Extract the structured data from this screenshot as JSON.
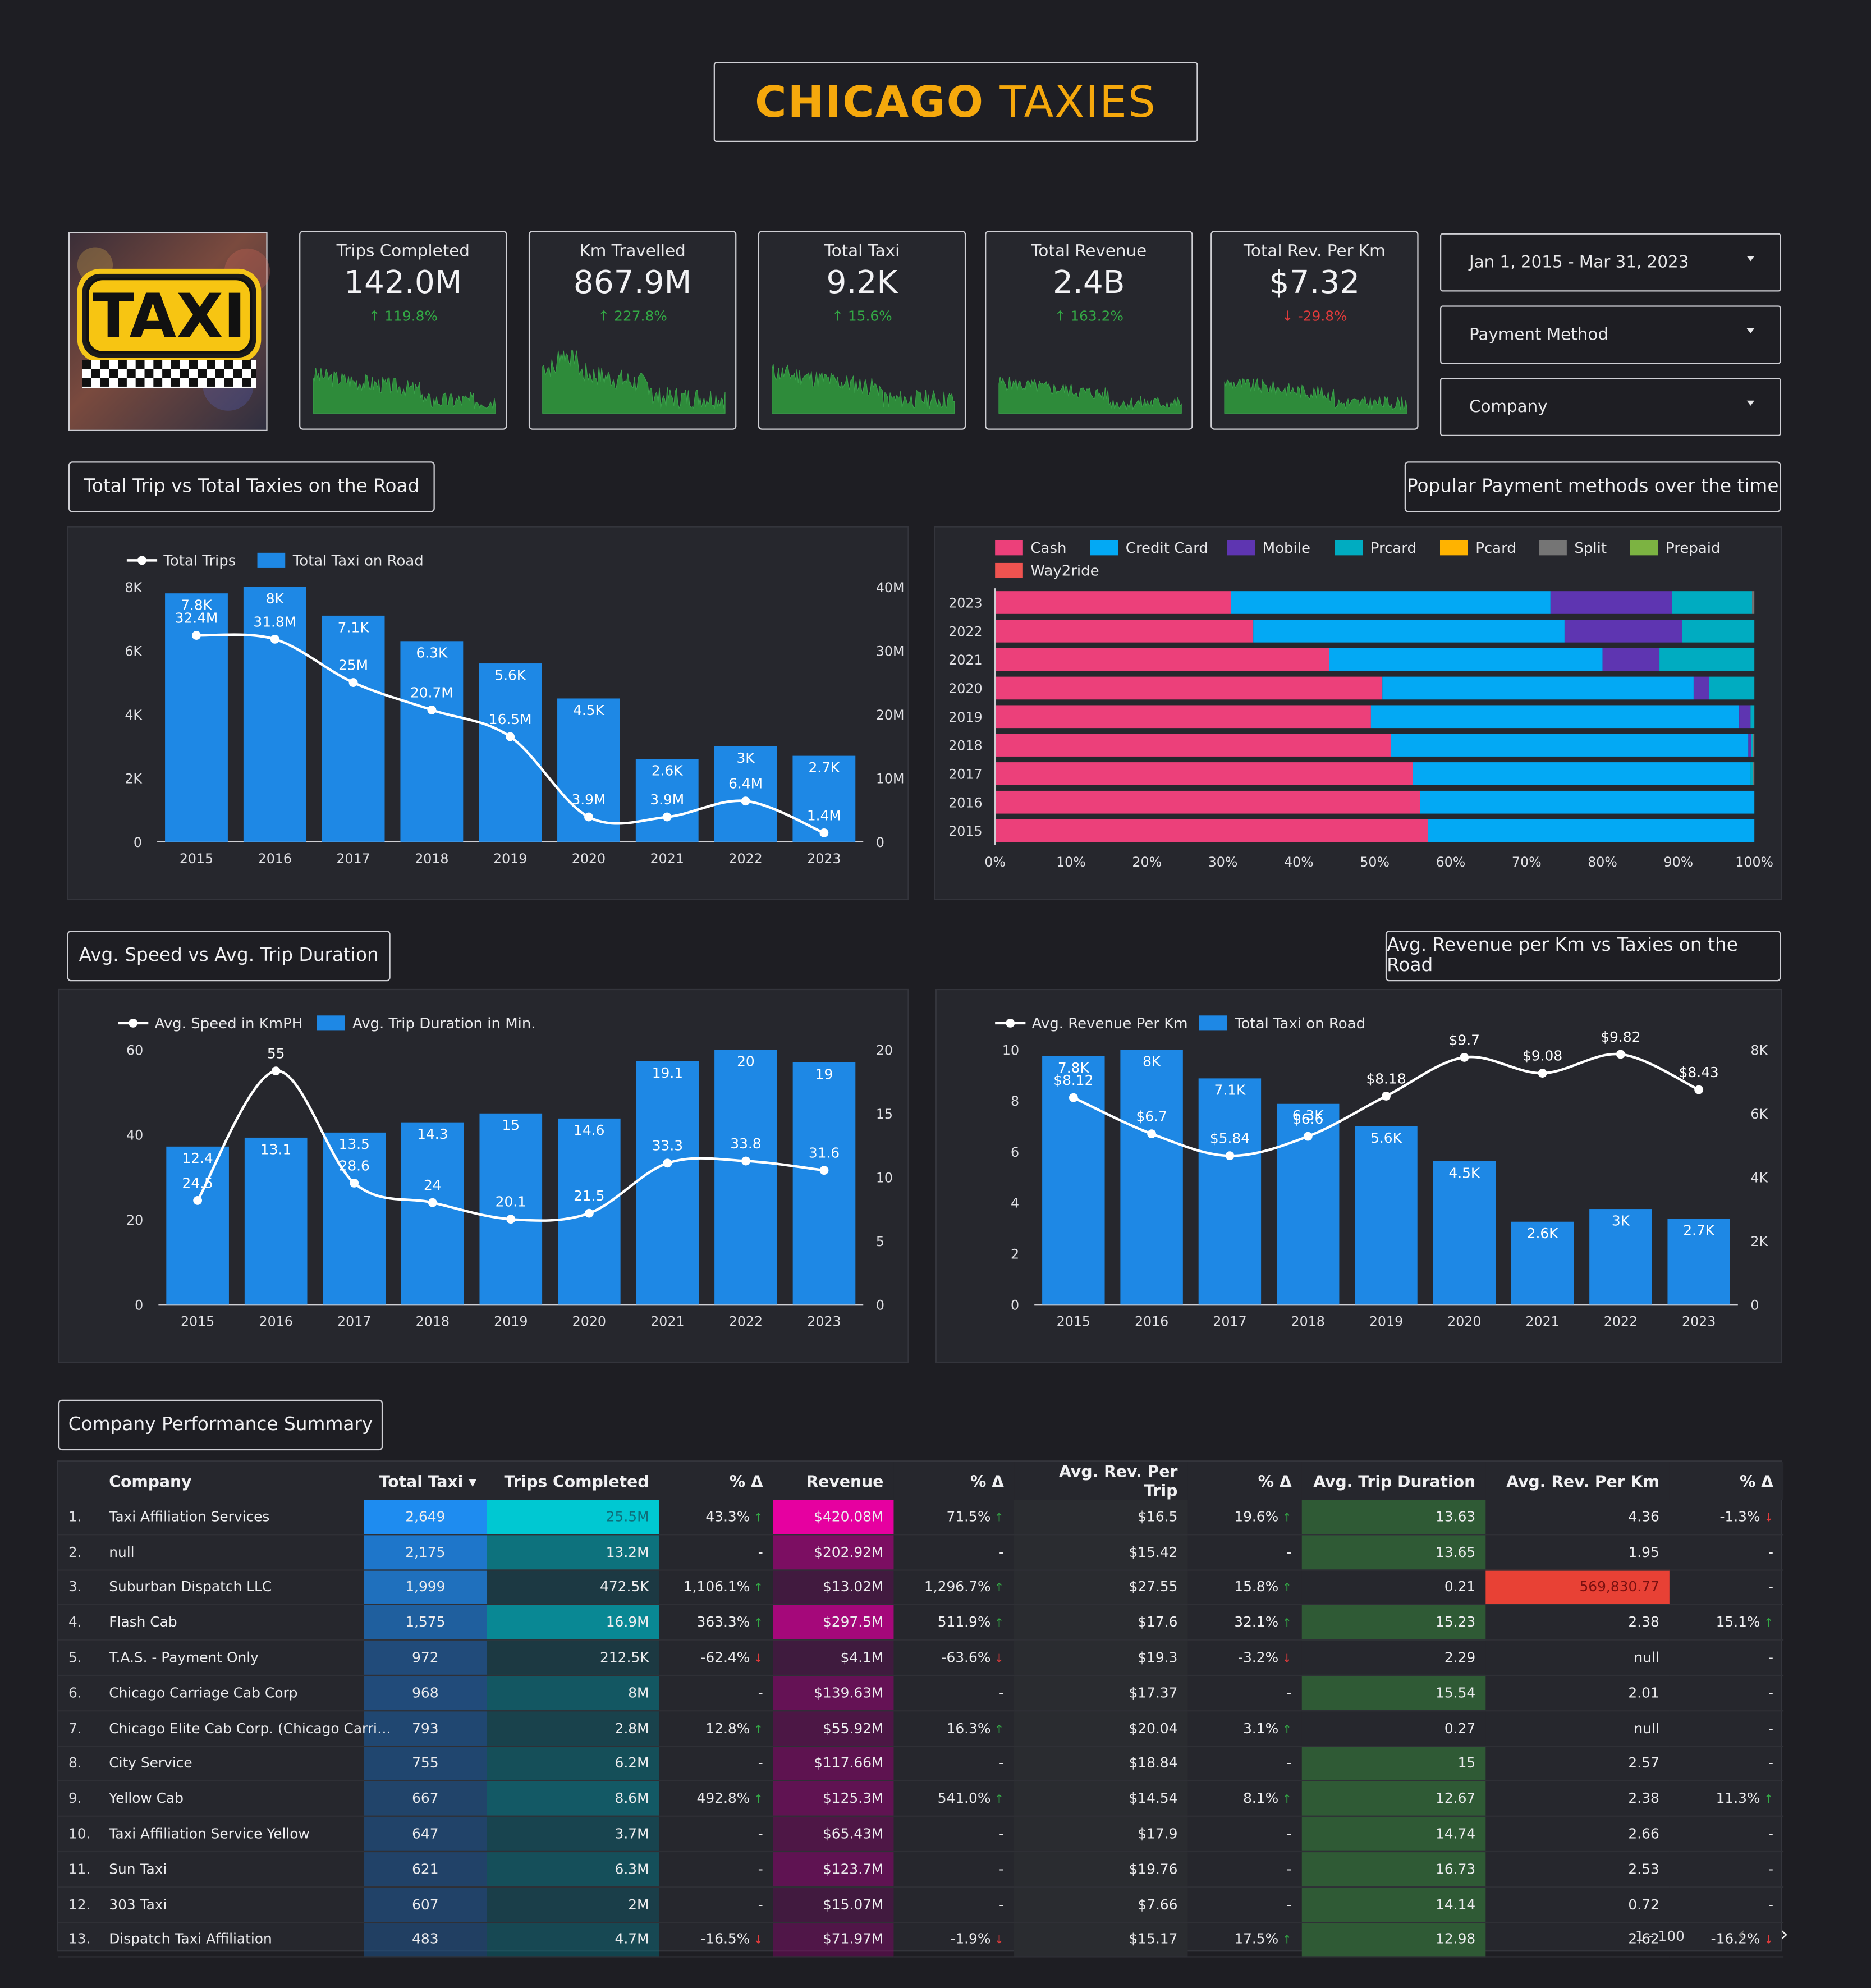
{
  "title": {
    "bold": "CHICAGO",
    "light": "TAXIES"
  },
  "logo": {
    "text": "TAXI"
  },
  "kpis": [
    {
      "label": "Trips Completed",
      "value": "142.0M",
      "change": "↑ 119.8%",
      "dir": "up"
    },
    {
      "label": "Km Travelled",
      "value": "867.9M",
      "change": "↑ 227.8%",
      "dir": "up"
    },
    {
      "label": "Total Taxi",
      "value": "9.2K",
      "change": "↑ 15.6%",
      "dir": "up"
    },
    {
      "label": "Total Revenue",
      "value": "2.4B",
      "change": "↑ 163.2%",
      "dir": "up"
    },
    {
      "label": "Total Rev. Per Km",
      "value": "$7.32",
      "change": "↓ -29.8%",
      "dir": "down"
    }
  ],
  "filters": {
    "date": "Jan 1, 2015 - Mar 31, 2023",
    "payment": "Payment Method",
    "company": "Company"
  },
  "sections": {
    "trips_taxi": "Total Trip vs Total Taxies on the Road",
    "payment": "Popular Payment methods over the time",
    "speed": "Avg. Speed vs Avg. Trip Duration",
    "revkm": "Avg. Revenue per Km vs Taxies on the Road",
    "company": "Company Performance Summary"
  },
  "chart_data": [
    {
      "type": "bar",
      "categories": [
        "2015",
        "2016",
        "2017",
        "2018",
        "2019",
        "2020",
        "2021",
        "2022",
        "2023"
      ],
      "series": [
        {
          "name": "Total Taxi on Road",
          "type": "bar",
          "axis": "left",
          "values": [
            7800,
            8000,
            7100,
            6300,
            5600,
            4500,
            2600,
            3000,
            2700
          ],
          "labels": [
            "7.8K",
            "8K",
            "7.1K",
            "6.3K",
            "5.6K",
            "4.5K",
            "2.6K",
            "3K",
            "2.7K"
          ],
          "color": "#1e88e5"
        },
        {
          "name": "Total Trips",
          "type": "line",
          "axis": "right",
          "values": [
            32.4,
            31.8,
            25,
            20.7,
            16.5,
            3.9,
            3.9,
            6.4,
            1.4
          ],
          "labels": [
            "32.4M",
            "31.8M",
            "25M",
            "20.7M",
            "16.5M",
            "3.9M",
            "3.9M",
            "6.4M",
            "1.4M"
          ],
          "color": "#ffffff"
        }
      ],
      "yleft": {
        "ticks": [
          "0",
          "2K",
          "4K",
          "6K",
          "8K"
        ],
        "max": 8000
      },
      "yright": {
        "ticks": [
          "0",
          "10M",
          "20M",
          "30M",
          "40M"
        ],
        "max": 40
      }
    },
    {
      "type": "bar",
      "orientation": "horizontal-stacked-100",
      "categories": [
        "2023",
        "2022",
        "2021",
        "2020",
        "2019",
        "2018",
        "2017",
        "2016",
        "2015"
      ],
      "series": [
        {
          "name": "Cash",
          "color": "#ec407a",
          "values": [
            31,
            34,
            44,
            51,
            49.5,
            52,
            55,
            56,
            57
          ]
        },
        {
          "name": "Credit Card",
          "color": "#03a9f4",
          "values": [
            42,
            41,
            36,
            41,
            48.5,
            47,
            44.5,
            44,
            43
          ]
        },
        {
          "name": "Mobile",
          "color": "#5e35b1",
          "values": [
            16,
            15.5,
            7.5,
            2,
            1.5,
            0.4,
            0,
            0,
            0
          ]
        },
        {
          "name": "Prcard",
          "color": "#00acc1",
          "values": [
            10.5,
            9.5,
            12.5,
            6,
            0.5,
            0.2,
            0.3,
            0,
            0
          ]
        },
        {
          "name": "Pcard",
          "color": "#ffb300",
          "values": [
            0,
            0,
            0,
            0,
            0,
            0,
            0,
            0,
            0
          ]
        },
        {
          "name": "Split",
          "color": "#757575",
          "values": [
            0.3,
            0,
            0,
            0,
            0,
            0.2,
            0.2,
            0,
            0
          ]
        },
        {
          "name": "Prepaid",
          "color": "#7cb342",
          "values": [
            0,
            0,
            0,
            0,
            0,
            0,
            0,
            0,
            0
          ]
        },
        {
          "name": "Way2ride",
          "color": "#ef5350",
          "values": [
            0,
            0,
            0,
            0,
            0,
            0,
            0,
            0,
            0
          ]
        }
      ],
      "xticks": [
        "0%",
        "10%",
        "20%",
        "30%",
        "40%",
        "50%",
        "60%",
        "70%",
        "80%",
        "90%",
        "100%"
      ]
    },
    {
      "type": "bar",
      "categories": [
        "2015",
        "2016",
        "2017",
        "2018",
        "2019",
        "2020",
        "2021",
        "2022",
        "2023"
      ],
      "series": [
        {
          "name": "Avg. Trip Duration in Min.",
          "type": "bar",
          "axis": "right",
          "values": [
            12.4,
            13.1,
            13.5,
            14.3,
            15,
            14.6,
            19.1,
            20,
            19
          ],
          "labels": [
            "12.4",
            "13.1",
            "13.5",
            "14.3",
            "15",
            "14.6",
            "19.1",
            "20",
            "19"
          ],
          "color": "#1e88e5"
        },
        {
          "name": "Avg. Speed in KmPH",
          "type": "line",
          "axis": "left",
          "values": [
            24.5,
            55,
            28.6,
            24,
            20.1,
            21.5,
            33.3,
            33.8,
            31.6
          ],
          "labels": [
            "24.5",
            "55",
            "28.6",
            "24",
            "20.1",
            "21.5",
            "33.3",
            "33.8",
            "31.6"
          ],
          "color": "#ffffff"
        }
      ],
      "yleft": {
        "ticks": [
          "0",
          "20",
          "40",
          "60"
        ],
        "max": 60
      },
      "yright": {
        "ticks": [
          "0",
          "5",
          "10",
          "15",
          "20"
        ],
        "max": 20
      }
    },
    {
      "type": "bar",
      "categories": [
        "2015",
        "2016",
        "2017",
        "2018",
        "2019",
        "2020",
        "2021",
        "2022",
        "2023"
      ],
      "series": [
        {
          "name": "Total Taxi on Road",
          "type": "bar",
          "axis": "right",
          "values": [
            7800,
            8000,
            7100,
            6300,
            5600,
            4500,
            2600,
            3000,
            2700
          ],
          "labels": [
            "7.8K",
            "8K",
            "7.1K",
            "6.3K",
            "5.6K",
            "4.5K",
            "2.6K",
            "3K",
            "2.7K"
          ],
          "color": "#1e88e5"
        },
        {
          "name": "Avg. Revenue Per Km",
          "type": "line",
          "axis": "left",
          "values": [
            8.12,
            6.7,
            5.84,
            6.6,
            8.18,
            9.7,
            9.08,
            9.82,
            8.43
          ],
          "labels": [
            "$8.12",
            "$6.7",
            "$5.84",
            "$6.6",
            "$8.18",
            "$9.7",
            "$9.08",
            "$9.82",
            "$8.43"
          ],
          "color": "#ffffff"
        }
      ],
      "yleft": {
        "ticks": [
          "0",
          "2",
          "4",
          "6",
          "8",
          "10"
        ],
        "max": 10
      },
      "yright": {
        "ticks": [
          "0",
          "2K",
          "4K",
          "6K",
          "8K"
        ],
        "max": 8000
      }
    }
  ],
  "table": {
    "headers": [
      "Company",
      "Total Taxi ▾",
      "Trips Completed",
      "% Δ",
      "Revenue",
      "% Δ",
      "Avg. Rev. Per Trip",
      "% Δ",
      "Avg. Trip Duration",
      "Avg. Rev. Per Km",
      "% Δ"
    ],
    "rows": [
      [
        "1.",
        "Taxi Affiliation Services",
        "2,649",
        "25.5M",
        "43.3%",
        "up",
        "$420.08M",
        "71.5%",
        "up",
        "$16.5",
        "19.6%",
        "up",
        "13.63",
        "4.36",
        "-1.3%",
        "dn"
      ],
      [
        "2.",
        "null",
        "2,175",
        "13.2M",
        "-",
        "",
        "$202.92M",
        "-",
        "",
        "$15.42",
        "-",
        "",
        "13.65",
        "1.95",
        "-",
        ""
      ],
      [
        "3.",
        "Suburban Dispatch LLC",
        "1,999",
        "472.5K",
        "1,106.1%",
        "up",
        "$13.02M",
        "1,296.7%",
        "up",
        "$27.55",
        "15.8%",
        "up",
        "0.21",
        "569,830.77",
        "-",
        ""
      ],
      [
        "4.",
        "Flash Cab",
        "1,575",
        "16.9M",
        "363.3%",
        "up",
        "$297.5M",
        "511.9%",
        "up",
        "$17.6",
        "32.1%",
        "up",
        "15.23",
        "2.38",
        "15.1%",
        "up"
      ],
      [
        "5.",
        "T.A.S. - Payment Only",
        "972",
        "212.5K",
        "-62.4%",
        "dn",
        "$4.1M",
        "-63.6%",
        "dn",
        "$19.3",
        "-3.2%",
        "dn",
        "2.29",
        "null",
        "-",
        ""
      ],
      [
        "6.",
        "Chicago Carriage Cab Corp",
        "968",
        "8M",
        "-",
        "",
        "$139.63M",
        "-",
        "",
        "$17.37",
        "-",
        "",
        "15.54",
        "2.01",
        "-",
        ""
      ],
      [
        "7.",
        "Chicago Elite Cab Corp. (Chicago Carri…",
        "793",
        "2.8M",
        "12.8%",
        "up",
        "$55.92M",
        "16.3%",
        "up",
        "$20.04",
        "3.1%",
        "up",
        "0.27",
        "null",
        "-",
        ""
      ],
      [
        "8.",
        "City Service",
        "755",
        "6.2M",
        "-",
        "",
        "$117.66M",
        "-",
        "",
        "$18.84",
        "-",
        "",
        "15",
        "2.57",
        "-",
        ""
      ],
      [
        "9.",
        "Yellow Cab",
        "667",
        "8.6M",
        "492.8%",
        "up",
        "$125.3M",
        "541.0%",
        "up",
        "$14.54",
        "8.1%",
        "up",
        "12.67",
        "2.38",
        "11.3%",
        "up"
      ],
      [
        "10.",
        "Taxi Affiliation Service Yellow",
        "647",
        "3.7M",
        "-",
        "",
        "$65.43M",
        "-",
        "",
        "$17.9",
        "-",
        "",
        "14.74",
        "2.66",
        "-",
        ""
      ],
      [
        "11.",
        "Sun Taxi",
        "621",
        "6.3M",
        "-",
        "",
        "$123.7M",
        "-",
        "",
        "$19.76",
        "-",
        "",
        "16.73",
        "2.53",
        "-",
        ""
      ],
      [
        "12.",
        "303 Taxi",
        "607",
        "2M",
        "-",
        "",
        "$15.07M",
        "-",
        "",
        "$7.66",
        "-",
        "",
        "14.14",
        "0.72",
        "-",
        ""
      ],
      [
        "13.",
        "Dispatch Taxi Affiliation",
        "483",
        "4.7M",
        "-16.5%",
        "dn",
        "$71.97M",
        "-1.9%",
        "dn",
        "$15.17",
        "17.5%",
        "up",
        "12.98",
        "2.62",
        "-16.2%",
        "dn"
      ]
    ],
    "pager": "1 - 100"
  },
  "colors": {
    "accent": "#f5a80c",
    "bar": "#1e88e5",
    "up": "#33a845",
    "down": "#e03b3b",
    "spark": "#2e8b3a"
  }
}
